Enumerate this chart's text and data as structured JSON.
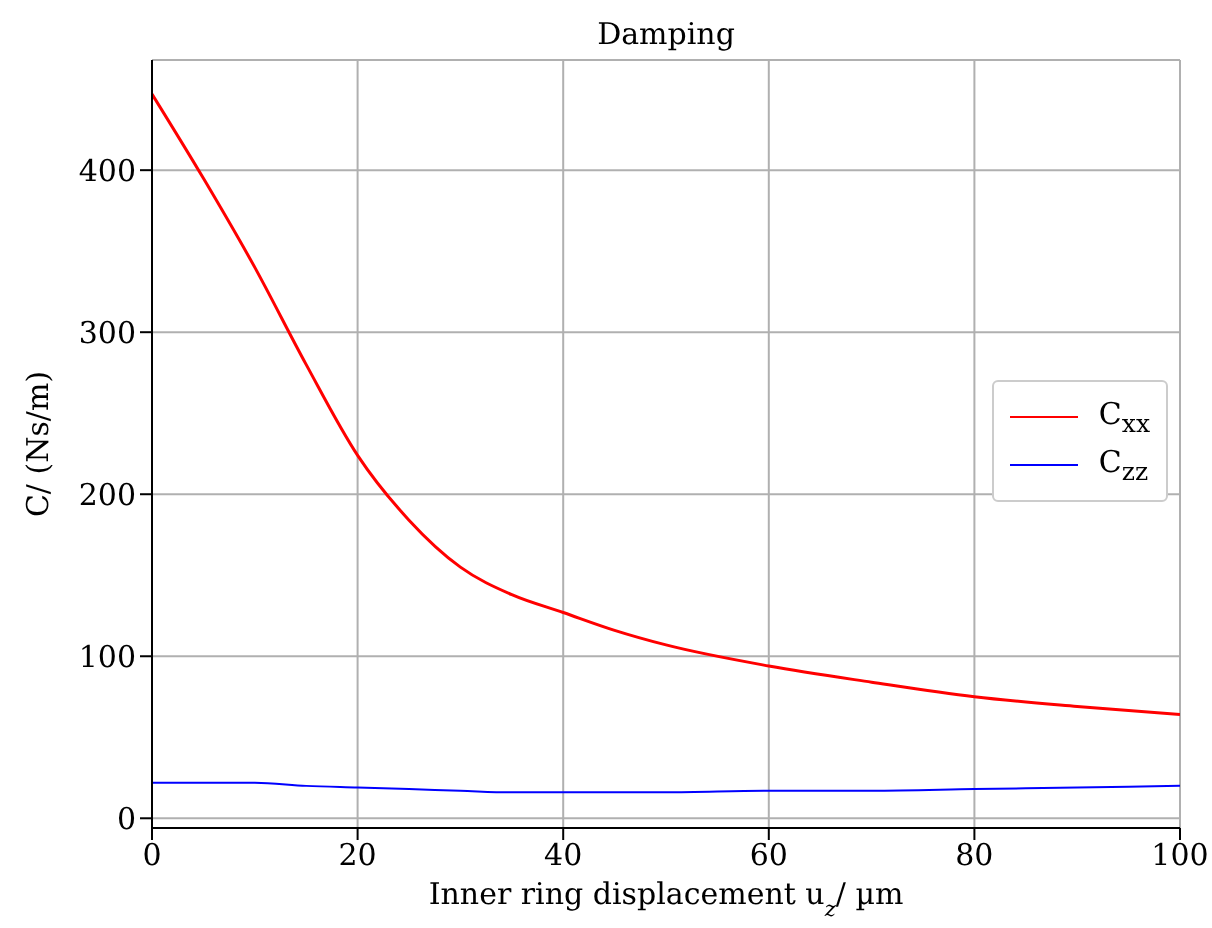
{
  "chart_data": {
    "type": "line",
    "title": "Damping",
    "xlabel": "Inner ring displacement u$_{z}$/ µm",
    "ylabel": "C/ (Ns/m)",
    "x": [
      0,
      5,
      10,
      15,
      20,
      25,
      30,
      35,
      40,
      45,
      50,
      60,
      70,
      80,
      90,
      100
    ],
    "series": [
      {
        "name": "C$_{xx}$",
        "color": "#ff0000",
        "values": [
          447,
          395,
          340,
          280,
          224,
          184,
          155,
          138,
          127,
          116,
          107,
          94,
          84,
          75,
          69,
          64
        ]
      },
      {
        "name": "C$_{zz}$",
        "color": "#0000ff",
        "values": [
          22,
          22,
          22,
          20,
          19,
          18,
          17,
          16,
          16,
          16,
          16,
          17,
          17,
          18,
          19,
          20
        ]
      }
    ],
    "xlim": [
      0,
      100
    ],
    "xticks": [
      0,
      20,
      40,
      60,
      80,
      100
    ],
    "ylim": [
      -6,
      468
    ],
    "yticks": [
      0,
      100,
      200,
      300,
      400
    ],
    "grid": true,
    "legend": "right",
    "marker": "none",
    "line_style": "solid"
  }
}
